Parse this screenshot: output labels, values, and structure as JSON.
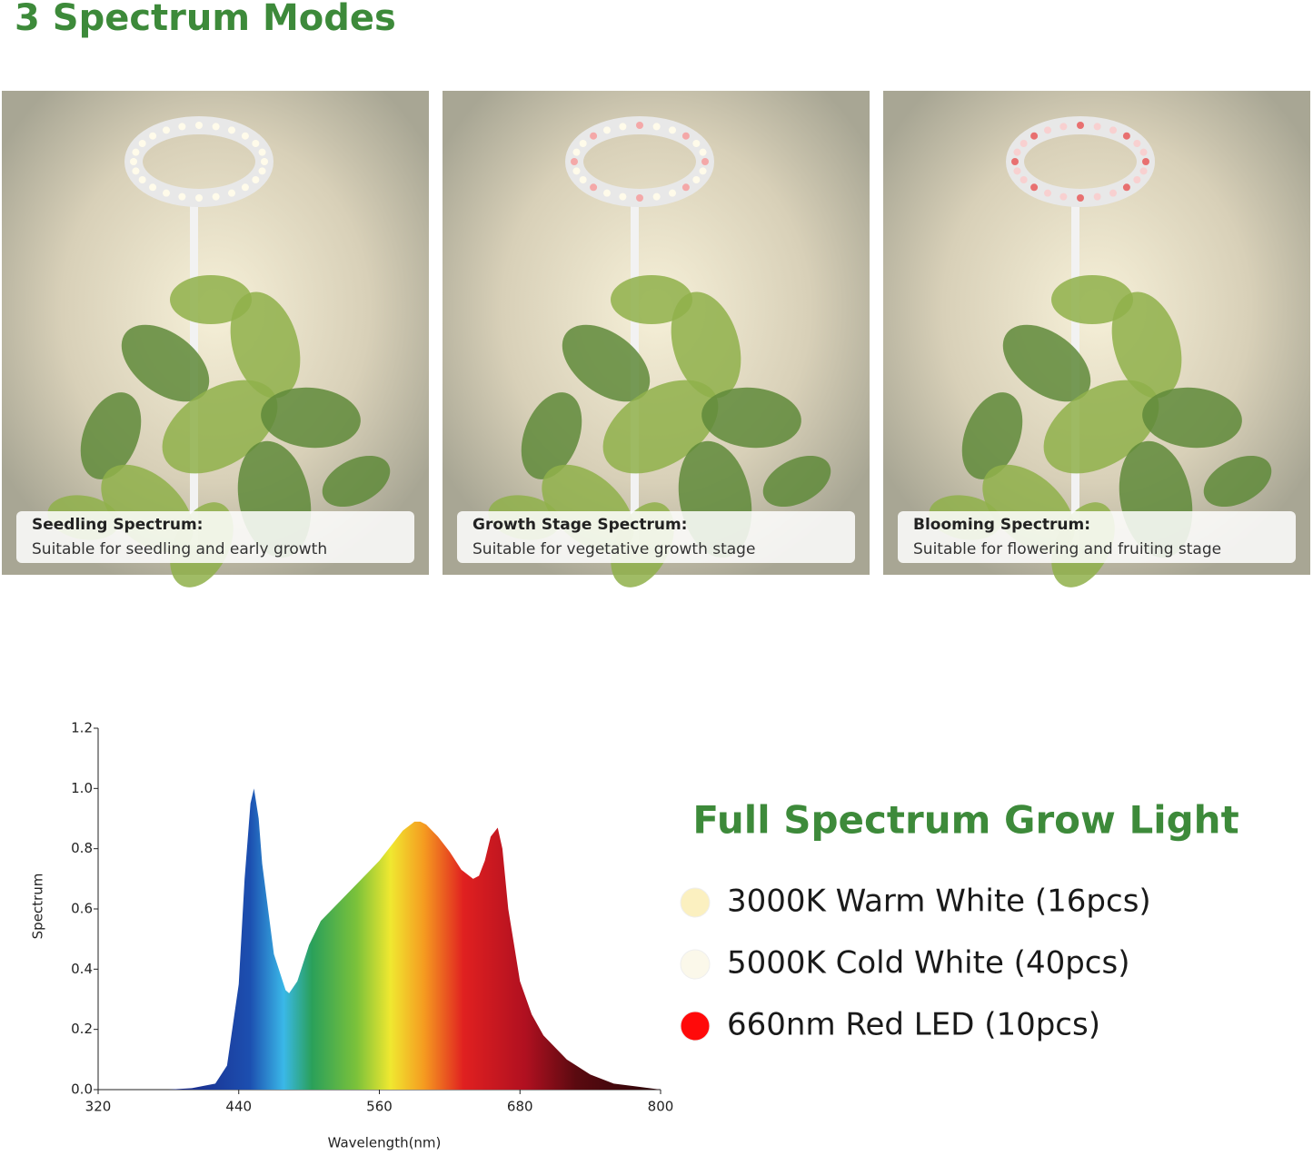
{
  "header": {
    "title": "3 Spectrum Modes"
  },
  "panels": [
    {
      "title": "Seedling Spectrum:",
      "text": "Suitable for seedling and early growth"
    },
    {
      "title": "Growth Stage Spectrum:",
      "text": "Suitable for vegetative growth stage"
    },
    {
      "title": "Blooming Spectrum:",
      "text": "Suitable for flowering and fruiting stage"
    }
  ],
  "chart_data": {
    "type": "area",
    "xlabel": "Wavelength(nm)",
    "ylabel": "Spectrum",
    "x": [
      380,
      400,
      420,
      430,
      440,
      445,
      450,
      453,
      457,
      460,
      470,
      480,
      483,
      490,
      500,
      510,
      520,
      530,
      540,
      550,
      560,
      570,
      580,
      590,
      595,
      600,
      610,
      620,
      630,
      640,
      645,
      650,
      655,
      661,
      665,
      670,
      680,
      690,
      700,
      720,
      740,
      760,
      780,
      800
    ],
    "values": [
      0,
      0.005,
      0.02,
      0.08,
      0.35,
      0.7,
      0.95,
      1.0,
      0.9,
      0.75,
      0.45,
      0.33,
      0.32,
      0.36,
      0.48,
      0.56,
      0.6,
      0.64,
      0.68,
      0.72,
      0.76,
      0.81,
      0.86,
      0.89,
      0.89,
      0.88,
      0.84,
      0.79,
      0.73,
      0.7,
      0.71,
      0.76,
      0.84,
      0.87,
      0.8,
      0.6,
      0.36,
      0.25,
      0.18,
      0.1,
      0.05,
      0.02,
      0.01,
      0
    ],
    "xlim": [
      320,
      800
    ],
    "xticks": [
      320,
      440,
      560,
      680,
      800
    ],
    "ylim": [
      0,
      1.2
    ],
    "yticks": [
      {
        "value": 0,
        "label": "0.0"
      },
      0.2,
      0.4,
      0.6,
      0.8,
      {
        "value": 1,
        "label": "1.0"
      },
      1.2
    ]
  },
  "legend": {
    "title": "Full Spectrum Grow Light",
    "items": [
      {
        "name": "3000K Warm White (16pcs)",
        "color": "#fbf0c0"
      },
      {
        "name": "5000K Cold White (40pcs)",
        "color": "#fbf8ea"
      },
      {
        "name": "660nm Red LED (10pcs)",
        "color": "#ff0a0a"
      }
    ]
  }
}
